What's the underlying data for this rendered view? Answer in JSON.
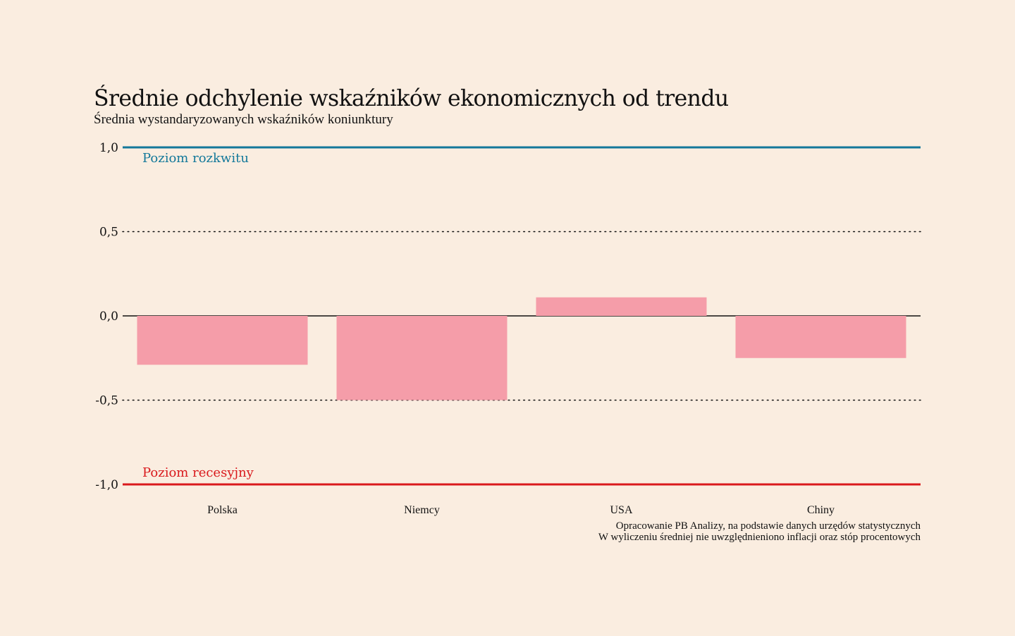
{
  "title": "Średnie odchylenie wskaźników ekonomicznych od trendu",
  "subtitle": "Średnia wystandaryzowanych wskaźników koniunktury",
  "source": {
    "line1": "Opracowanie PB Analizy, na podstawie danych urzędów statystycznych",
    "line2": "W wyliczeniu średniej nie uwzględnieniono inflacji oraz stóp procentowych"
  },
  "colors": {
    "background": "#FAEDE0",
    "bar": "#F59DA9",
    "upper_line": "#13789A",
    "lower_line": "#D9191C",
    "text": "#111111"
  },
  "chart_data": {
    "type": "bar",
    "title": "Średnie odchylenie wskaźników ekonomicznych od trendu",
    "subtitle": "Średnia wystandaryzowanych wskaźników koniunktury",
    "categories": [
      "Polska",
      "Niemcy",
      "USA",
      "Chiny"
    ],
    "values": [
      -0.29,
      -0.5,
      0.11,
      -0.25
    ],
    "ylim": [
      -1.0,
      1.0
    ],
    "yticks": [
      1.0,
      0.5,
      0.0,
      -0.5,
      -1.0
    ],
    "ytick_labels": [
      "1,0",
      "0,5",
      "0,0",
      "-0,5",
      "-1,0"
    ],
    "gridlines": "dotted at ±0,5",
    "legend": "none",
    "reference_lines": [
      {
        "value": 1.0,
        "label": "Poziom rozkwitu",
        "color": "#13789A"
      },
      {
        "value": -1.0,
        "label": "Poziom recesyjny",
        "color": "#D9191C"
      }
    ]
  }
}
